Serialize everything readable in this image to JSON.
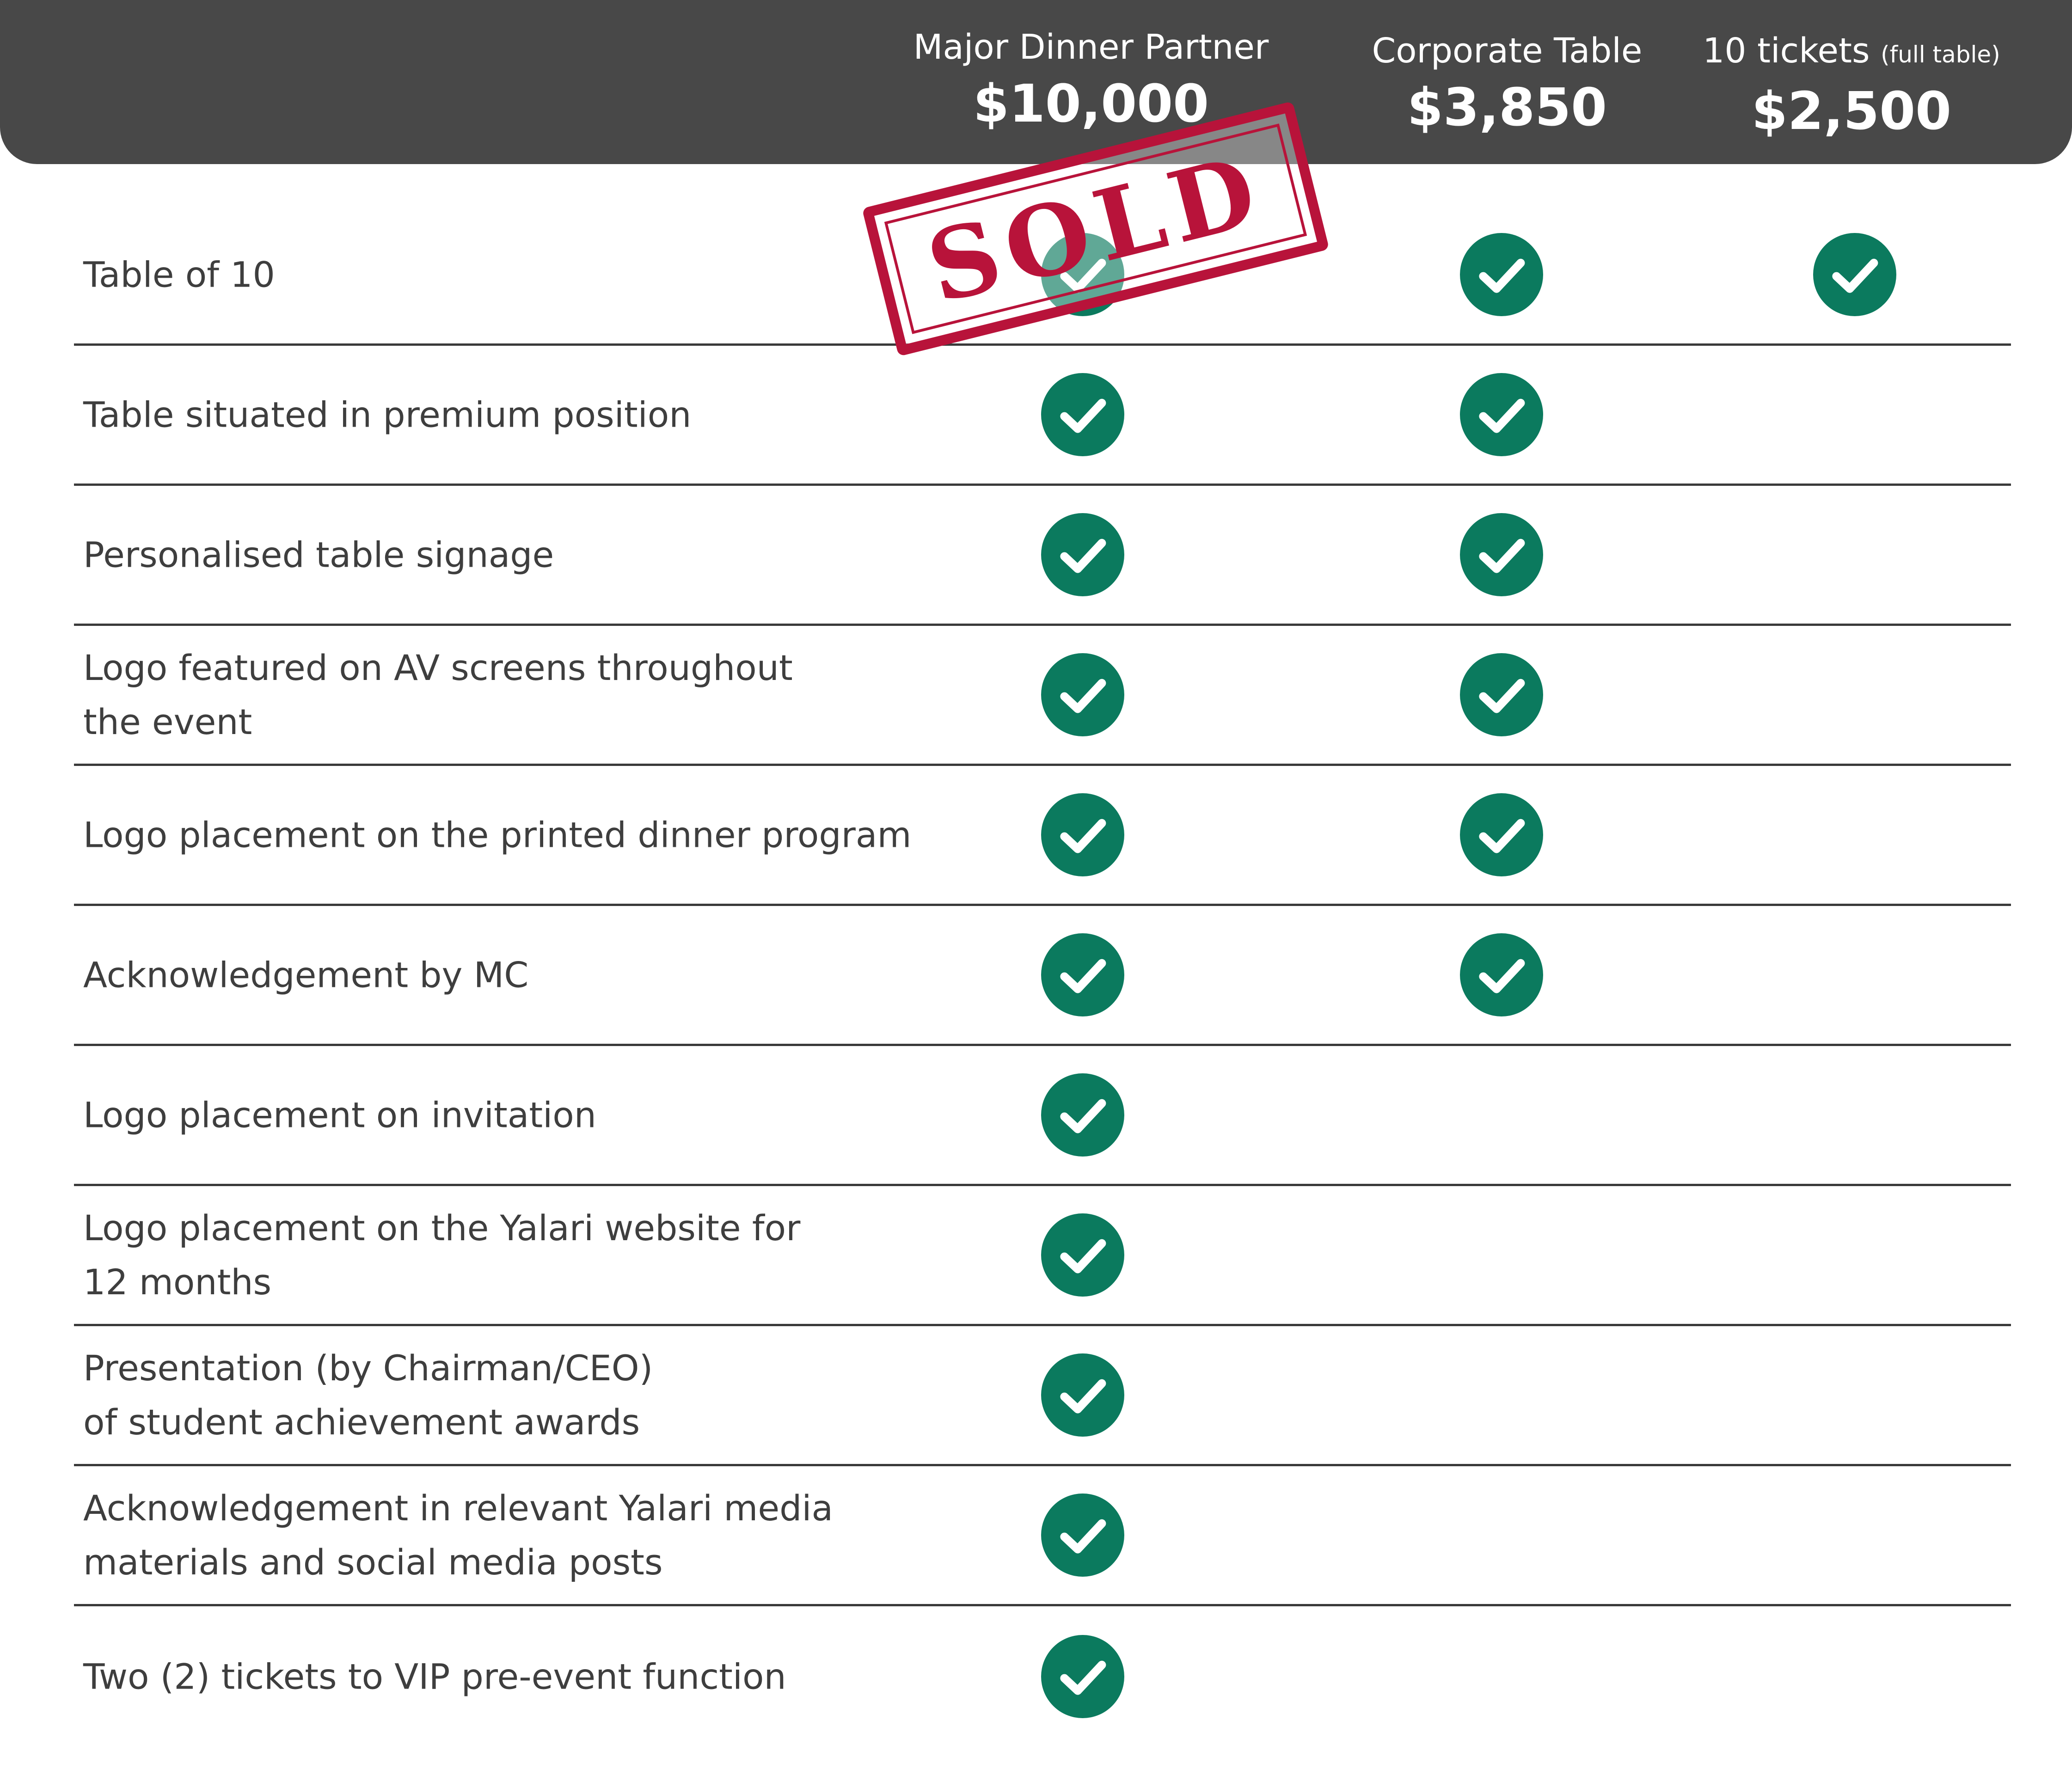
{
  "header": {
    "columns": [
      {
        "name": "Major Dinner Partner",
        "price": "$10,000"
      },
      {
        "name": "Corporate Table",
        "price": "$3,850"
      },
      {
        "name": "10 tickets",
        "name_sub": "(full table)",
        "price": "$2,500"
      }
    ]
  },
  "stamp": {
    "text": "SOLD"
  },
  "rows": [
    {
      "label": "Table of 10",
      "checks": [
        true,
        true,
        true
      ]
    },
    {
      "label": "Table situated in premium position",
      "checks": [
        true,
        true,
        false
      ]
    },
    {
      "label": "Personalised table signage",
      "checks": [
        true,
        true,
        false
      ]
    },
    {
      "label": "Logo featured on AV screens throughout\nthe event",
      "checks": [
        true,
        true,
        false
      ]
    },
    {
      "label": "Logo placement on the printed dinner program",
      "checks": [
        true,
        true,
        false
      ]
    },
    {
      "label": "Acknowledgement by MC",
      "checks": [
        true,
        true,
        false
      ]
    },
    {
      "label": "Logo placement on invitation",
      "checks": [
        true,
        false,
        false
      ]
    },
    {
      "label": "Logo placement on the Yalari website for\n12 months",
      "checks": [
        true,
        false,
        false
      ]
    },
    {
      "label": "Presentation (by Chairman/CEO)\nof student achievement awards",
      "checks": [
        true,
        false,
        false
      ]
    },
    {
      "label": "Acknowledgement in relevant Yalari media\nmaterials and social media posts",
      "checks": [
        true,
        false,
        false
      ]
    },
    {
      "label": "Two (2) tickets to VIP pre-event function",
      "checks": [
        true,
        false,
        false
      ]
    }
  ],
  "colors": {
    "header_bg": "#484848",
    "check_bg": "#0b7a5e",
    "stamp": "#b8133a",
    "divider": "#3a3a3a"
  },
  "icons": {
    "check": "check-circle-icon"
  }
}
